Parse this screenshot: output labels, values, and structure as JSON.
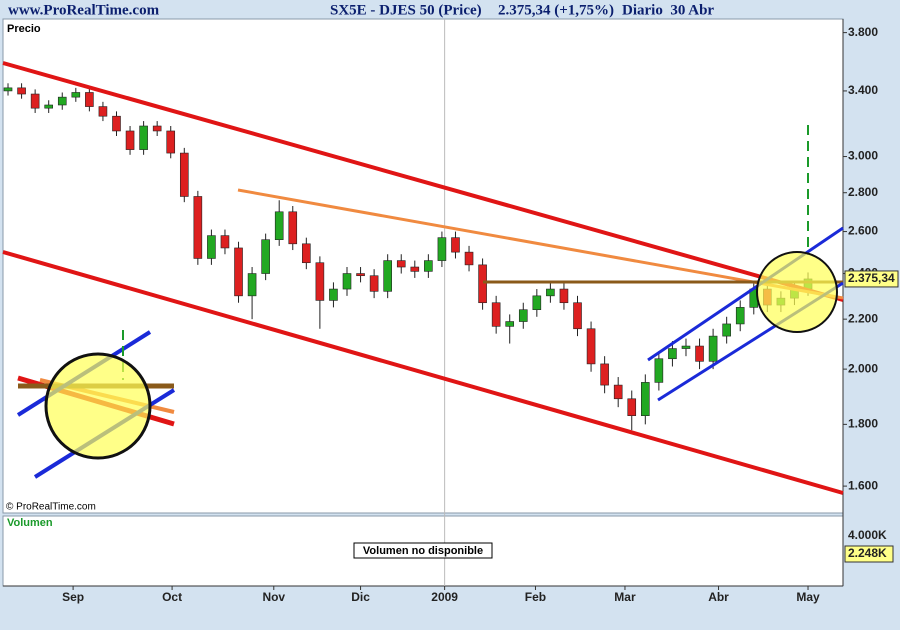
{
  "header": {
    "site": "www.ProRealTime.com"
  },
  "chart_data": {
    "type": "candlestick",
    "title": "SX5E - DJES 50 (Price)",
    "change_label": "2.375,34 (+1,75%)",
    "period": "Diario  30 Abr",
    "panel_label": "Precio",
    "copyright": "© ProRealTime.com",
    "log_scale": true,
    "up_color": "#22a822",
    "down_color": "#dd2020",
    "xlim": [
      -0.37,
      61.58
    ],
    "xticks": [
      {
        "value": 4.8,
        "label": "Sep"
      },
      {
        "value": 12.1,
        "label": "Oct"
      },
      {
        "value": 19.6,
        "label": "Nov"
      },
      {
        "value": 26.0,
        "label": "Dic"
      },
      {
        "value": 32.2,
        "label": "2009"
      },
      {
        "value": 38.9,
        "label": "Feb"
      },
      {
        "value": 45.5,
        "label": "Mar"
      },
      {
        "value": 52.4,
        "label": "Abr"
      },
      {
        "value": 59.0,
        "label": "May"
      }
    ],
    "ylim": [
      1520,
      3900
    ],
    "yticks": [
      {
        "value": 1600,
        "label": "1.600"
      },
      {
        "value": 1800,
        "label": "1.800"
      },
      {
        "value": 2000,
        "label": "2.000"
      },
      {
        "value": 2200,
        "label": "2.200"
      },
      {
        "value": 2400,
        "label": "2.400"
      },
      {
        "value": 2600,
        "label": "2.600"
      },
      {
        "value": 2800,
        "label": "2.800"
      },
      {
        "value": 3000,
        "label": "3.000"
      },
      {
        "value": 3400,
        "label": "3.400"
      },
      {
        "value": 3800,
        "label": "3.800"
      }
    ],
    "last_price_tag": "2.375,34",
    "open": [
      3400,
      3420,
      3380,
      3290,
      3310,
      3360,
      3390,
      3300,
      3240,
      3150,
      3040,
      3180,
      3150,
      3020,
      2780,
      2470,
      2580,
      2520,
      2300,
      2400,
      2560,
      2700,
      2540,
      2450,
      2280,
      2330,
      2400,
      2390,
      2320,
      2460,
      2430,
      2410,
      2460,
      2570,
      2500,
      2440,
      2270,
      2170,
      2190,
      2240,
      2300,
      2330,
      2270,
      2160,
      2020,
      1940,
      1890,
      1830,
      1950,
      2040,
      2080,
      2090,
      2030,
      2130,
      2180,
      2250,
      2330,
      2260,
      2290,
      2330
    ],
    "high": [
      3450,
      3450,
      3410,
      3340,
      3390,
      3420,
      3420,
      3330,
      3270,
      3180,
      3210,
      3210,
      3180,
      3050,
      2810,
      2610,
      2610,
      2550,
      2430,
      2590,
      2760,
      2730,
      2570,
      2480,
      2360,
      2430,
      2430,
      2420,
      2490,
      2490,
      2460,
      2490,
      2600,
      2600,
      2530,
      2470,
      2300,
      2220,
      2270,
      2330,
      2360,
      2360,
      2300,
      2190,
      2050,
      1970,
      1920,
      1980,
      2070,
      2110,
      2120,
      2120,
      2160,
      2210,
      2280,
      2360,
      2360,
      2320,
      2360,
      2405
    ],
    "low": [
      3370,
      3350,
      3260,
      3260,
      3280,
      3330,
      3270,
      3210,
      3120,
      3010,
      3010,
      3120,
      2990,
      2750,
      2440,
      2440,
      2490,
      2270,
      2200,
      2370,
      2530,
      2510,
      2420,
      2160,
      2250,
      2300,
      2360,
      2290,
      2290,
      2400,
      2380,
      2380,
      2430,
      2470,
      2410,
      2240,
      2140,
      2100,
      2160,
      2210,
      2270,
      2240,
      2130,
      1990,
      1910,
      1860,
      1780,
      1800,
      1920,
      2010,
      2050,
      2000,
      2000,
      2100,
      2150,
      2220,
      2230,
      2230,
      2260,
      2300
    ],
    "close": [
      3420,
      3380,
      3290,
      3310,
      3360,
      3390,
      3300,
      3240,
      3150,
      3040,
      3180,
      3150,
      3020,
      2780,
      2470,
      2580,
      2520,
      2300,
      2400,
      2560,
      2700,
      2540,
      2450,
      2280,
      2330,
      2400,
      2390,
      2320,
      2460,
      2430,
      2410,
      2460,
      2570,
      2500,
      2440,
      2270,
      2170,
      2190,
      2240,
      2300,
      2330,
      2270,
      2160,
      2020,
      1940,
      1890,
      1830,
      1950,
      2040,
      2080,
      2090,
      2030,
      2130,
      2180,
      2250,
      2330,
      2260,
      2290,
      2330,
      2375.34
    ],
    "volume": {
      "label": "Volumen",
      "message": "Volumen no disponible",
      "tick_label": "4.000K",
      "last_tag": "2.248K"
    }
  }
}
